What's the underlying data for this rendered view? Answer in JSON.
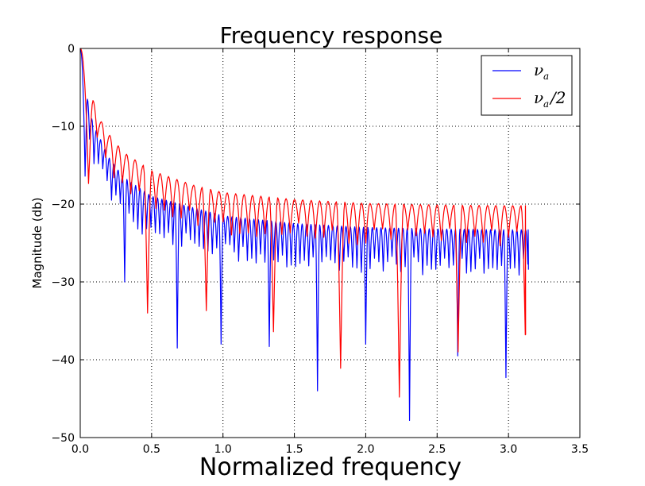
{
  "chart_data": {
    "type": "line",
    "title": "Frequency response",
    "xlabel": "Normalized frequency",
    "ylabel": "Magnitude (db)",
    "xlim": [
      0,
      3.5
    ],
    "ylim": [
      -50,
      0
    ],
    "x_ticks": [
      "0.0",
      "0.5",
      "1.0",
      "1.5",
      "2.0",
      "2.5",
      "3.0",
      "3.5"
    ],
    "y_ticks": [
      "0",
      "−10",
      "−20",
      "−30",
      "−40",
      "−50"
    ],
    "grid": true,
    "grid_style": "dotted",
    "legend_position": "top-right",
    "series": [
      {
        "name": "ν_a",
        "legend_main": "ν",
        "legend_sub": "a",
        "color": "#0000ff",
        "x_end": 3.14,
        "peak_x": [
          0.05,
          0.08,
          0.11,
          0.15,
          0.2,
          0.3,
          0.5,
          0.8,
          1.0,
          1.5,
          2.0,
          2.5,
          3.0,
          3.14
        ],
        "peak_y": [
          -6.5,
          -9.0,
          -10.5,
          -12.0,
          -14.0,
          -16.5,
          -19.0,
          -20.5,
          -21.5,
          -22.5,
          -23.0,
          -23.2,
          -23.3,
          -23.3
        ],
        "notch_x": [
          0.04,
          0.32,
          0.67,
          1.0,
          1.33,
          1.66,
          2.0,
          2.32,
          2.65,
          2.98
        ],
        "notch_y": [
          -17.5,
          -30.0,
          -38.5,
          -38.0,
          -38.3,
          -44.0,
          -38.0,
          -47.8,
          -39.5,
          -42.3
        ]
      },
      {
        "name": "ν_a/2",
        "legend_main": "ν",
        "legend_sub": "a",
        "legend_suffix": "/2",
        "color": "#ff0000",
        "x_end": 3.12,
        "peak_x": [
          0.09,
          0.15,
          0.2,
          0.3,
          0.5,
          0.8,
          1.0,
          1.5,
          2.0,
          2.5,
          3.0,
          3.12
        ],
        "peak_y": [
          -6.7,
          -9.5,
          -11.0,
          -13.3,
          -15.7,
          -17.6,
          -18.5,
          -19.4,
          -19.9,
          -20.1,
          -20.2,
          -20.2
        ],
        "notch_x": [
          0.45,
          0.88,
          1.37,
          1.81,
          2.25,
          2.67,
          3.12
        ],
        "notch_y": [
          -34.0,
          -33.7,
          -36.4,
          -41.1,
          -44.8,
          -39.0,
          -36.8
        ]
      }
    ]
  }
}
